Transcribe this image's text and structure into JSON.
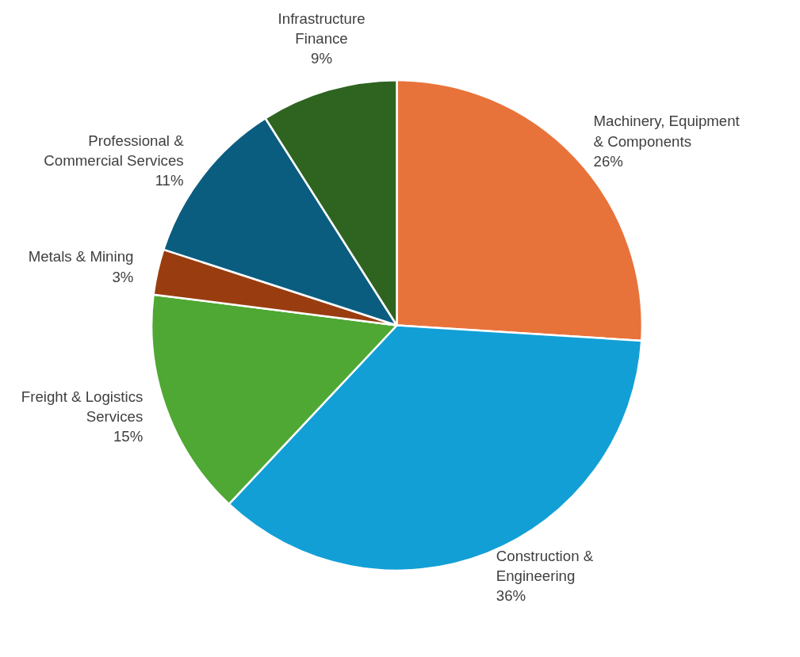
{
  "chart_data": {
    "type": "pie",
    "categories": [
      "Machinery, Equipment & Components",
      "Construction & Engineering",
      "Freight & Logistics Services",
      "Metals & Mining",
      "Professional & Commercial Services",
      "Infrastructure Finance"
    ],
    "values": [
      26,
      36,
      15,
      3,
      11,
      9
    ],
    "value_labels": [
      "26%",
      "36%",
      "15%",
      "3%",
      "11%",
      "9%"
    ],
    "colors": [
      "#e8733a",
      "#129fd6",
      "#4ea833",
      "#993d10",
      "#0b5d80",
      "#2e6420"
    ],
    "legend": false
  }
}
